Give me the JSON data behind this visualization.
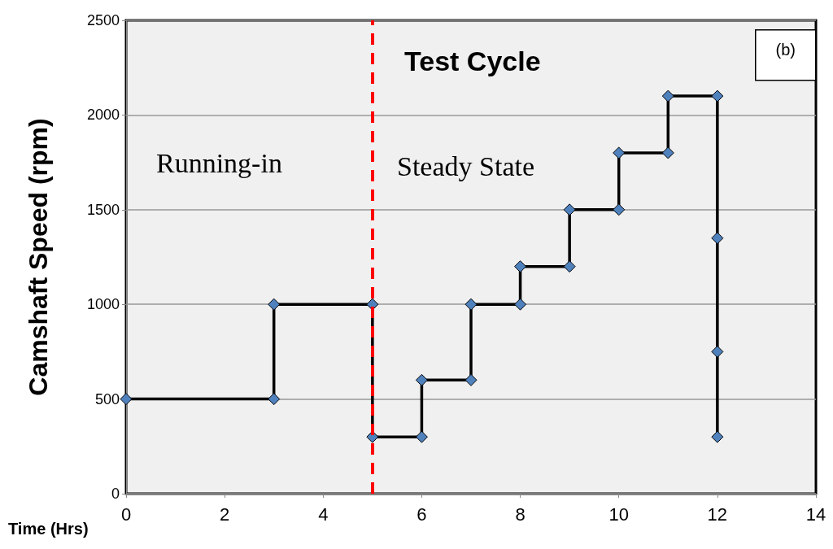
{
  "chart_data": {
    "type": "line",
    "title": "Test Cycle",
    "xlabel": "Time (Hrs)",
    "ylabel": "Camshaft Speed (rpm)",
    "annotations": [
      "Running-in",
      "Steady State",
      "(b)"
    ],
    "series": [
      {
        "color": "#4f81bd",
        "x": [
          0,
          3,
          3,
          5,
          5,
          6,
          6,
          7,
          7,
          8,
          8,
          9,
          9,
          10,
          10,
          11,
          11,
          12,
          12,
          12,
          12
        ],
        "values": [
          500,
          500,
          1000,
          1000,
          300,
          300,
          600,
          600,
          1000,
          1000,
          1200,
          1200,
          1500,
          1500,
          1800,
          1800,
          2100,
          2100,
          1350,
          750,
          300
        ]
      }
    ],
    "xlim": [
      0,
      14
    ],
    "xticks": [
      0,
      2,
      4,
      6,
      8,
      10,
      12,
      14
    ],
    "ylim": [
      0,
      2500
    ],
    "yticks": [
      0,
      500,
      1000,
      1500,
      2000,
      2500
    ],
    "grid": "y",
    "marker": "diamond",
    "line_style": "solid",
    "ref_lines": [
      {
        "axis": "x",
        "value": 5,
        "color": "#ff0000",
        "line_style": "dashed"
      }
    ]
  }
}
